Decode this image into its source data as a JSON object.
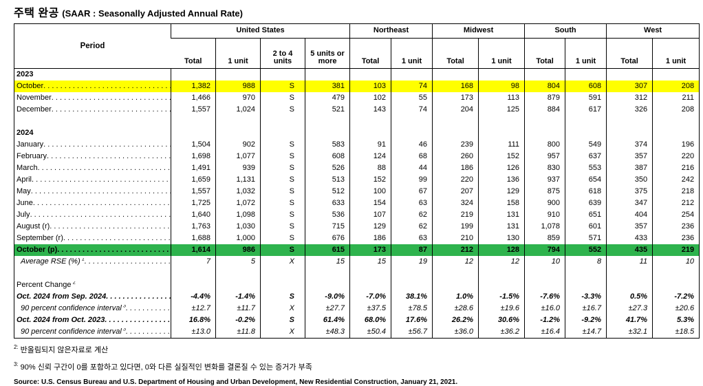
{
  "title": {
    "korean": "주택 완공",
    "english": "(SAAR : Seasonally Adjusted Annual Rate)"
  },
  "colors": {
    "highlight_yellow": "#FFFF00",
    "highlight_green": "#2EB34D"
  },
  "table": {
    "period_header": "Period",
    "groups": [
      {
        "label": "United States",
        "cols": [
          "Total",
          "1 unit",
          "2 to 4 units",
          "5 units or more"
        ]
      },
      {
        "label": "Northeast",
        "cols": [
          "Total",
          "1 unit"
        ]
      },
      {
        "label": "Midwest",
        "cols": [
          "Total",
          "1 unit"
        ]
      },
      {
        "label": "South",
        "cols": [
          "Total",
          "1 unit"
        ]
      },
      {
        "label": "West",
        "cols": [
          "Total",
          "1 unit"
        ]
      }
    ],
    "rows": [
      {
        "section": true,
        "bold": true,
        "label": "2023"
      },
      {
        "label": "October",
        "dots": true,
        "highlight": "yellow",
        "values": [
          "1,382",
          "988",
          "S",
          "381",
          "103",
          "74",
          "168",
          "98",
          "804",
          "608",
          "307",
          "208"
        ]
      },
      {
        "label": "November",
        "dots": true,
        "values": [
          "1,466",
          "970",
          "S",
          "479",
          "102",
          "55",
          "173",
          "113",
          "879",
          "591",
          "312",
          "211"
        ]
      },
      {
        "label": "December",
        "dots": true,
        "values": [
          "1,557",
          "1,024",
          "S",
          "521",
          "143",
          "74",
          "204",
          "125",
          "884",
          "617",
          "326",
          "208"
        ]
      },
      {
        "blank": true
      },
      {
        "section": true,
        "bold": true,
        "label": "2024"
      },
      {
        "label": "January",
        "dots": true,
        "values": [
          "1,504",
          "902",
          "S",
          "583",
          "91",
          "46",
          "239",
          "111",
          "800",
          "549",
          "374",
          "196"
        ]
      },
      {
        "label": "February",
        "dots": true,
        "values": [
          "1,698",
          "1,077",
          "S",
          "608",
          "124",
          "68",
          "260",
          "152",
          "957",
          "637",
          "357",
          "220"
        ]
      },
      {
        "label": "March",
        "dots": true,
        "values": [
          "1,491",
          "939",
          "S",
          "526",
          "88",
          "44",
          "186",
          "126",
          "830",
          "553",
          "387",
          "216"
        ]
      },
      {
        "label": "April",
        "dots": true,
        "values": [
          "1,659",
          "1,131",
          "S",
          "513",
          "152",
          "99",
          "220",
          "136",
          "937",
          "654",
          "350",
          "242"
        ]
      },
      {
        "label": "May",
        "dots": true,
        "values": [
          "1,557",
          "1,032",
          "S",
          "512",
          "100",
          "67",
          "207",
          "129",
          "875",
          "618",
          "375",
          "218"
        ]
      },
      {
        "label": "June",
        "dots": true,
        "values": [
          "1,725",
          "1,072",
          "S",
          "633",
          "154",
          "63",
          "324",
          "158",
          "900",
          "639",
          "347",
          "212"
        ]
      },
      {
        "label": "July",
        "dots": true,
        "values": [
          "1,640",
          "1,098",
          "S",
          "536",
          "107",
          "62",
          "219",
          "131",
          "910",
          "651",
          "404",
          "254"
        ]
      },
      {
        "label": "August (r)",
        "dots": true,
        "values": [
          "1,763",
          "1,030",
          "S",
          "715",
          "129",
          "62",
          "199",
          "131",
          "1,078",
          "601",
          "357",
          "236"
        ]
      },
      {
        "label": "September (r)",
        "dots": true,
        "values": [
          "1,688",
          "1,000",
          "S",
          "676",
          "186",
          "63",
          "210",
          "130",
          "859",
          "571",
          "433",
          "236"
        ]
      },
      {
        "label": "October (p)",
        "dots": true,
        "highlight": "green",
        "values": [
          "1,614",
          "986",
          "S",
          "615",
          "173",
          "87",
          "212",
          "128",
          "794",
          "552",
          "435",
          "219"
        ]
      },
      {
        "label": "Average RSE (%)",
        "sup": "1",
        "dots": true,
        "style": "italic",
        "indent": true,
        "values": [
          "7",
          "5",
          "X",
          "15",
          "15",
          "19",
          "12",
          "12",
          "10",
          "8",
          "11",
          "10"
        ]
      },
      {
        "blank": true
      },
      {
        "section": true,
        "bold": false,
        "label": "Percent Change",
        "sup": "2"
      },
      {
        "label": "Oct. 2024 from Sep. 2024",
        "dots": true,
        "style": "bolditalic",
        "values": [
          "-4.4%",
          "-1.4%",
          "S",
          "-9.0%",
          "-7.0%",
          "38.1%",
          "1.0%",
          "-1.5%",
          "-7.6%",
          "-3.3%",
          "0.5%",
          "-7.2%"
        ]
      },
      {
        "label": "90 percent confidence interval",
        "sup": "3",
        "dots": true,
        "style": "italic",
        "indent": true,
        "values": [
          "±12.7",
          "±11.7",
          "X",
          "±27.7",
          "±37.5",
          "±78.5",
          "±28.6",
          "±19.6",
          "±16.0",
          "±16.7",
          "±27.3",
          "±20.6"
        ]
      },
      {
        "label": "Oct. 2024 from Oct. 2023",
        "dots": true,
        "style": "bolditalic",
        "values": [
          "16.8%",
          "-0.2%",
          "S",
          "61.4%",
          "68.0%",
          "17.6%",
          "26.2%",
          "30.6%",
          "-1.2%",
          "-9.2%",
          "41.7%",
          "5.3%"
        ]
      },
      {
        "label": "90 percent confidence interval",
        "sup": "3",
        "dots": true,
        "style": "italic",
        "indent": true,
        "values": [
          "±13.0",
          "±11.8",
          "X",
          "±48.3",
          "±50.4",
          "±56.7",
          "±36.0",
          "±36.2",
          "±16.4",
          "±14.7",
          "±32.1",
          "±18.5"
        ]
      }
    ]
  },
  "footnotes": [
    {
      "sup": "2:",
      "text": "반올림되지 않은자료로 계산"
    },
    {
      "sup": "3:",
      "text": "90% 신뢰 구간이 0를 포함하고 있다면, 0와 다른 실질적인 변화를 결론질 수 있는 증거가 부족"
    }
  ],
  "source": "Source: U.S. Census Bureau and U.S. Department of Housing and Urban Development, New Residential Construction, January 21, 2021."
}
